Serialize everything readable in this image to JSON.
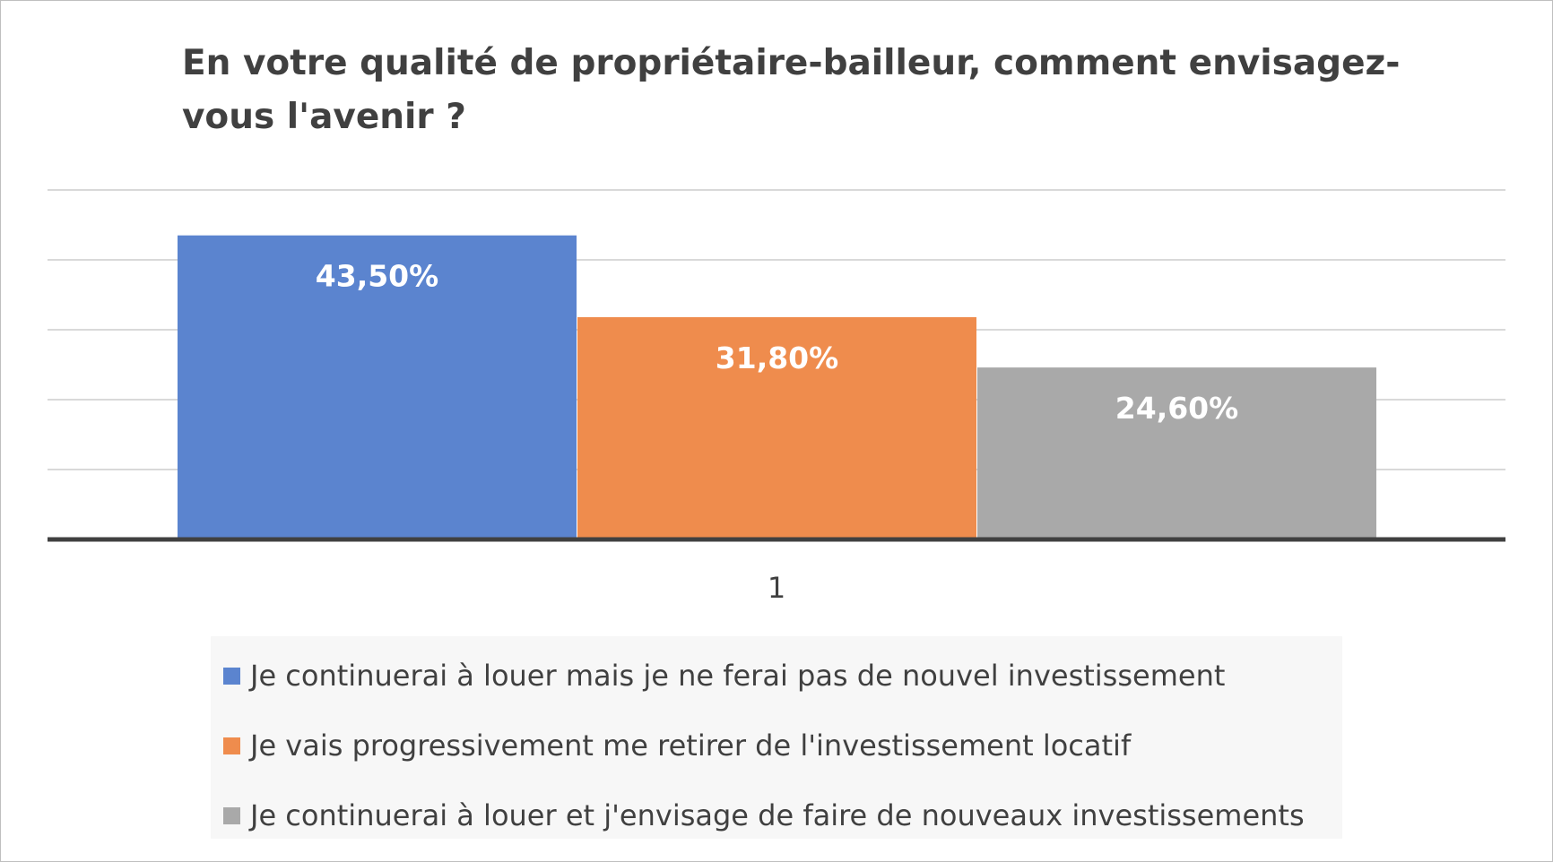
{
  "chart_data": {
    "type": "bar",
    "title": "En votre qualité de propriétaire-bailleur, comment envisagez-vous l'avenir ?",
    "categories": [
      "1"
    ],
    "series": [
      {
        "name": "Je continuerai à louer mais je ne ferai pas de nouvel investissement",
        "values": [
          43.5
        ],
        "label": "43,50%",
        "color": "#5b84cf"
      },
      {
        "name": "Je vais progressivement me retirer de l'investissement locatif",
        "values": [
          31.8
        ],
        "label": "31,80%",
        "color": "#ef8c4d"
      },
      {
        "name": "Je continuerai à louer et j'envisage de faire de nouveaux investissements",
        "values": [
          24.6
        ],
        "label": "24,60%",
        "color": "#a9a9a9"
      }
    ],
    "ylim": [
      0,
      50
    ],
    "grid": true,
    "legend_position": "bottom",
    "xlabel": "",
    "ylabel": ""
  }
}
